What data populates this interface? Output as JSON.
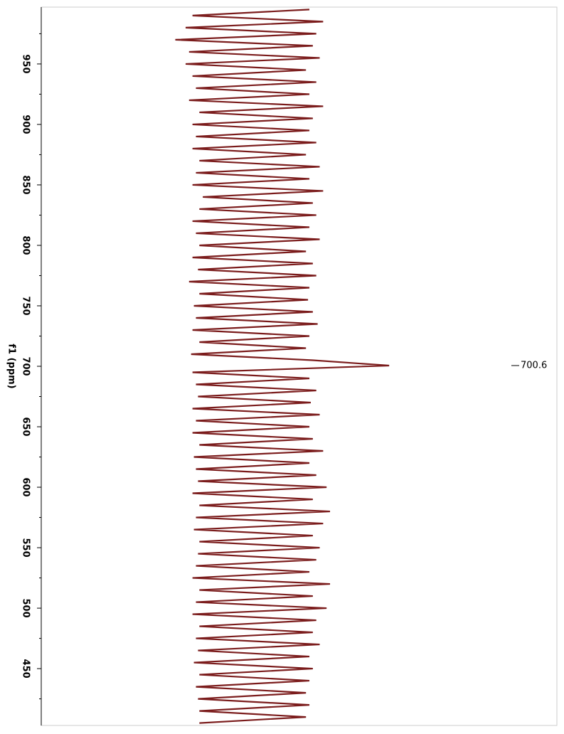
{
  "chart_data": {
    "type": "line",
    "orientation": "vertical",
    "y_label": "f1 (ppm)",
    "ylim": [
      997,
      403
    ],
    "yticks": [
      950,
      900,
      850,
      800,
      750,
      700,
      650,
      600,
      550,
      500,
      450
    ],
    "yticks_minor": [
      975,
      925,
      875,
      825,
      775,
      725,
      675,
      625,
      575,
      525,
      475,
      425
    ],
    "xlim": [
      -3,
      4.5
    ],
    "x": [
      995,
      990,
      985,
      980,
      975,
      970,
      965,
      960,
      955,
      950,
      945,
      940,
      935,
      930,
      925,
      920,
      915,
      910,
      905,
      900,
      895,
      890,
      885,
      880,
      875,
      870,
      865,
      860,
      855,
      850,
      845,
      840,
      835,
      830,
      825,
      820,
      815,
      810,
      805,
      800,
      795,
      790,
      785,
      780,
      775,
      770,
      765,
      760,
      755,
      750,
      745,
      740,
      735,
      730,
      725,
      720,
      715,
      710,
      705,
      700.6,
      695,
      690,
      685,
      680,
      675,
      670,
      665,
      660,
      655,
      650,
      645,
      640,
      635,
      630,
      625,
      620,
      615,
      610,
      605,
      600,
      595,
      590,
      585,
      580,
      575,
      570,
      565,
      560,
      555,
      550,
      545,
      540,
      535,
      530,
      525,
      520,
      515,
      510,
      505,
      500,
      495,
      490,
      485,
      480,
      475,
      470,
      465,
      460,
      455,
      450,
      445,
      440,
      435,
      430,
      425,
      420,
      415,
      410,
      405
    ],
    "series": [
      {
        "color": "#7b1c1c",
        "values": [
          0.9,
          -0.8,
          1.1,
          -0.9,
          1.0,
          -1.05,
          0.95,
          -0.85,
          1.05,
          -0.9,
          0.85,
          -0.8,
          1.0,
          -0.75,
          0.9,
          -0.85,
          1.1,
          -0.7,
          0.95,
          -0.8,
          0.9,
          -0.75,
          1.0,
          -0.8,
          0.85,
          -0.7,
          1.05,
          -0.75,
          0.9,
          -0.8,
          1.1,
          -0.65,
          0.95,
          -0.7,
          1.0,
          -0.8,
          0.9,
          -0.75,
          1.05,
          -0.7,
          0.85,
          -0.8,
          0.95,
          -0.72,
          1.0,
          -0.85,
          0.9,
          -0.7,
          0.88,
          -0.78,
          0.95,
          -0.75,
          1.02,
          -0.8,
          0.9,
          -0.7,
          0.85,
          -0.82,
          0.95,
          2.06,
          -0.8,
          0.9,
          -0.75,
          1.0,
          -0.72,
          0.92,
          -0.8,
          1.05,
          -0.75,
          0.9,
          -0.8,
          0.95,
          -0.7,
          1.1,
          -0.78,
          0.9,
          -0.75,
          1.0,
          -0.72,
          1.15,
          -0.8,
          0.95,
          -0.7,
          1.2,
          -0.75,
          1.1,
          -0.78,
          0.95,
          -0.7,
          1.05,
          -0.72,
          1.0,
          -0.75,
          0.9,
          -0.8,
          1.2,
          -0.7,
          0.95,
          -0.75,
          1.15,
          -0.8,
          1.0,
          -0.7,
          0.95,
          -0.75,
          1.05,
          -0.72,
          0.9,
          -0.78,
          0.95,
          -0.7,
          0.9,
          -0.75,
          0.85,
          -0.72,
          0.9,
          -0.7,
          0.85,
          -0.7
        ]
      }
    ],
    "peak_labels": [
      700.6
    ]
  }
}
